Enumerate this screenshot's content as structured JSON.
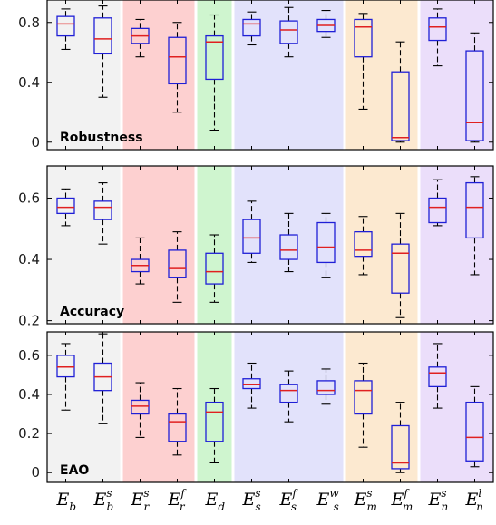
{
  "chart_data": {
    "type": "boxplot",
    "categories": [
      {
        "base": "E",
        "sub": "b",
        "sup": ""
      },
      {
        "base": "E",
        "sub": "b",
        "sup": "s"
      },
      {
        "base": "E",
        "sub": "r",
        "sup": "s"
      },
      {
        "base": "E",
        "sub": "r",
        "sup": "f"
      },
      {
        "base": "E",
        "sub": "d",
        "sup": ""
      },
      {
        "base": "E",
        "sub": "s",
        "sup": "s"
      },
      {
        "base": "E",
        "sub": "s",
        "sup": "f"
      },
      {
        "base": "E",
        "sub": "s",
        "sup": "w"
      },
      {
        "base": "E",
        "sub": "m",
        "sup": "s"
      },
      {
        "base": "E",
        "sub": "m",
        "sup": "f"
      },
      {
        "base": "E",
        "sub": "n",
        "sup": "s"
      },
      {
        "base": "E",
        "sub": "n",
        "sup": "l"
      }
    ],
    "groups": [
      {
        "from": 0,
        "to": 1,
        "color": "#f2f2f2"
      },
      {
        "from": 2,
        "to": 3,
        "color": "#fdd0d0"
      },
      {
        "from": 4,
        "to": 4,
        "color": "#cff5cf"
      },
      {
        "from": 5,
        "to": 7,
        "color": "#e2e2fb"
      },
      {
        "from": 8,
        "to": 9,
        "color": "#fce9d0"
      },
      {
        "from": 10,
        "to": 11,
        "color": "#ebdefa"
      }
    ],
    "colors": {
      "box": "#1f1fd6",
      "median": "#e02020",
      "whisker": "#000000"
    },
    "panels": [
      {
        "label": "Robustness",
        "ylim": [
          -0.05,
          0.95
        ],
        "yticks": [
          0,
          0.4,
          0.8
        ],
        "ytick_labels": [
          "0",
          "0.4",
          "0.8"
        ],
        "boxes": [
          {
            "min": 0.62,
            "q1": 0.71,
            "median": 0.79,
            "q3": 0.84,
            "max": 0.89
          },
          {
            "min": 0.3,
            "q1": 0.59,
            "median": 0.69,
            "q3": 0.83,
            "max": 0.91
          },
          {
            "min": 0.57,
            "q1": 0.66,
            "median": 0.71,
            "q3": 0.76,
            "max": 0.82
          },
          {
            "min": 0.2,
            "q1": 0.39,
            "median": 0.57,
            "q3": 0.7,
            "max": 0.8
          },
          {
            "min": 0.08,
            "q1": 0.42,
            "median": 0.67,
            "q3": 0.71,
            "max": 0.85
          },
          {
            "min": 0.65,
            "q1": 0.71,
            "median": 0.79,
            "q3": 0.82,
            "max": 0.87
          },
          {
            "min": 0.57,
            "q1": 0.66,
            "median": 0.75,
            "q3": 0.81,
            "max": 0.9
          },
          {
            "min": 0.7,
            "q1": 0.74,
            "median": 0.78,
            "q3": 0.82,
            "max": 0.88
          },
          {
            "min": 0.22,
            "q1": 0.57,
            "median": 0.77,
            "q3": 0.82,
            "max": 0.86
          },
          {
            "min": 0.0,
            "q1": 0.01,
            "median": 0.03,
            "q3": 0.47,
            "max": 0.67
          },
          {
            "min": 0.51,
            "q1": 0.68,
            "median": 0.77,
            "q3": 0.83,
            "max": 0.89
          },
          {
            "min": 0.0,
            "q1": 0.01,
            "median": 0.13,
            "q3": 0.61,
            "max": 0.73
          }
        ]
      },
      {
        "label": "Accuracy",
        "ylim": [
          0.19,
          0.705
        ],
        "yticks": [
          0.2,
          0.4,
          0.6
        ],
        "ytick_labels": [
          "0.2",
          "0.4",
          "0.6"
        ],
        "boxes": [
          {
            "min": 0.51,
            "q1": 0.55,
            "median": 0.57,
            "q3": 0.6,
            "max": 0.63
          },
          {
            "min": 0.45,
            "q1": 0.53,
            "median": 0.57,
            "q3": 0.59,
            "max": 0.65
          },
          {
            "min": 0.32,
            "q1": 0.36,
            "median": 0.38,
            "q3": 0.4,
            "max": 0.47
          },
          {
            "min": 0.26,
            "q1": 0.34,
            "median": 0.37,
            "q3": 0.43,
            "max": 0.49
          },
          {
            "min": 0.26,
            "q1": 0.32,
            "median": 0.36,
            "q3": 0.42,
            "max": 0.48
          },
          {
            "min": 0.39,
            "q1": 0.42,
            "median": 0.47,
            "q3": 0.53,
            "max": 0.59
          },
          {
            "min": 0.36,
            "q1": 0.4,
            "median": 0.43,
            "q3": 0.48,
            "max": 0.55
          },
          {
            "min": 0.34,
            "q1": 0.39,
            "median": 0.44,
            "q3": 0.52,
            "max": 0.55
          },
          {
            "min": 0.35,
            "q1": 0.41,
            "median": 0.43,
            "q3": 0.49,
            "max": 0.54
          },
          {
            "min": 0.21,
            "q1": 0.29,
            "median": 0.42,
            "q3": 0.45,
            "max": 0.55
          },
          {
            "min": 0.51,
            "q1": 0.52,
            "median": 0.57,
            "q3": 0.6,
            "max": 0.66
          },
          {
            "min": 0.35,
            "q1": 0.47,
            "median": 0.57,
            "q3": 0.65,
            "max": 0.67
          }
        ]
      },
      {
        "label": "EAO",
        "ylim": [
          -0.05,
          0.72
        ],
        "yticks": [
          0,
          0.2,
          0.4,
          0.6
        ],
        "ytick_labels": [
          "0",
          "0.2",
          "0.4",
          "0.6"
        ],
        "boxes": [
          {
            "min": 0.32,
            "q1": 0.49,
            "median": 0.54,
            "q3": 0.6,
            "max": 0.66
          },
          {
            "min": 0.25,
            "q1": 0.42,
            "median": 0.49,
            "q3": 0.56,
            "max": 0.71
          },
          {
            "min": 0.18,
            "q1": 0.3,
            "median": 0.34,
            "q3": 0.37,
            "max": 0.46
          },
          {
            "min": 0.09,
            "q1": 0.16,
            "median": 0.26,
            "q3": 0.3,
            "max": 0.43
          },
          {
            "min": 0.05,
            "q1": 0.16,
            "median": 0.31,
            "q3": 0.36,
            "max": 0.43
          },
          {
            "min": 0.33,
            "q1": 0.43,
            "median": 0.45,
            "q3": 0.48,
            "max": 0.56
          },
          {
            "min": 0.26,
            "q1": 0.36,
            "median": 0.42,
            "q3": 0.45,
            "max": 0.52
          },
          {
            "min": 0.35,
            "q1": 0.4,
            "median": 0.42,
            "q3": 0.47,
            "max": 0.53
          },
          {
            "min": 0.13,
            "q1": 0.3,
            "median": 0.42,
            "q3": 0.47,
            "max": 0.56
          },
          {
            "min": 0.0,
            "q1": 0.02,
            "median": 0.05,
            "q3": 0.24,
            "max": 0.36
          },
          {
            "min": 0.33,
            "q1": 0.44,
            "median": 0.51,
            "q3": 0.54,
            "max": 0.66
          },
          {
            "min": 0.03,
            "q1": 0.06,
            "median": 0.18,
            "q3": 0.36,
            "max": 0.44
          }
        ]
      }
    ]
  }
}
